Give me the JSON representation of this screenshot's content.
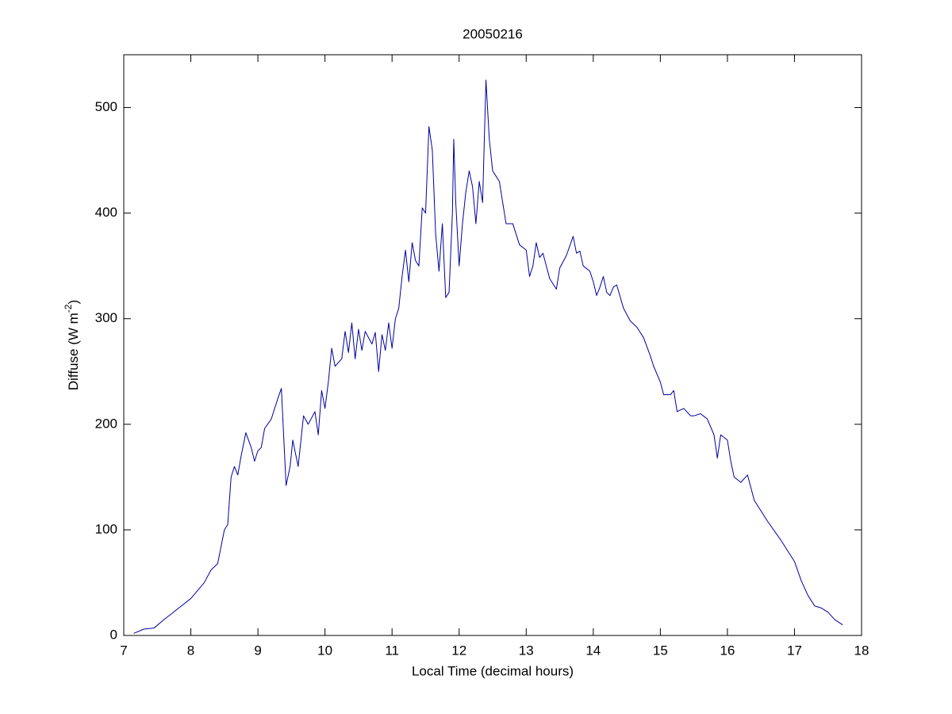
{
  "chart_data": {
    "type": "line",
    "title": "20050216",
    "xlabel": "Local Time (decimal hours)",
    "ylabel": [
      "Diffuse (W m",
      "-2",
      ")"
    ],
    "x": [
      7.15,
      7.3,
      7.45,
      7.6,
      7.8,
      8.0,
      8.2,
      8.3,
      8.4,
      8.5,
      8.55,
      8.6,
      8.65,
      8.7,
      8.75,
      8.82,
      8.9,
      8.95,
      9.0,
      9.05,
      9.1,
      9.2,
      9.3,
      9.35,
      9.42,
      9.48,
      9.52,
      9.6,
      9.68,
      9.75,
      9.85,
      9.9,
      9.95,
      10.0,
      10.05,
      10.1,
      10.15,
      10.25,
      10.3,
      10.35,
      10.4,
      10.45,
      10.5,
      10.55,
      10.6,
      10.7,
      10.75,
      10.8,
      10.85,
      10.9,
      10.95,
      11.0,
      11.05,
      11.1,
      11.15,
      11.2,
      11.25,
      11.3,
      11.35,
      11.4,
      11.45,
      11.5,
      11.55,
      11.6,
      11.65,
      11.7,
      11.75,
      11.8,
      11.85,
      11.9,
      11.92,
      11.95,
      12.0,
      12.05,
      12.1,
      12.15,
      12.2,
      12.25,
      12.3,
      12.35,
      12.4,
      12.45,
      12.5,
      12.55,
      12.6,
      12.65,
      12.7,
      12.8,
      12.9,
      13.0,
      13.05,
      13.1,
      13.15,
      13.2,
      13.25,
      13.35,
      13.45,
      13.5,
      13.6,
      13.7,
      13.75,
      13.8,
      13.85,
      13.95,
      14.0,
      14.05,
      14.1,
      14.15,
      14.2,
      14.25,
      14.3,
      14.35,
      14.45,
      14.55,
      14.65,
      14.75,
      14.85,
      14.9,
      15.0,
      15.05,
      15.15,
      15.2,
      15.25,
      15.35,
      15.45,
      15.5,
      15.6,
      15.7,
      15.8,
      15.85,
      15.9,
      16.0,
      16.05,
      16.1,
      16.2,
      16.3,
      16.4,
      16.6,
      16.8,
      17.0,
      17.1,
      17.2,
      17.3,
      17.4,
      17.5,
      17.6,
      17.72
    ],
    "series": [
      {
        "color": "#0000a0",
        "values": [
          2,
          6,
          7,
          15,
          25,
          35,
          50,
          62,
          68,
          100,
          105,
          150,
          160,
          152,
          170,
          192,
          178,
          165,
          175,
          178,
          196,
          205,
          225,
          234,
          142,
          160,
          185,
          160,
          208,
          200,
          212,
          190,
          232,
          215,
          240,
          272,
          255,
          262,
          288,
          268,
          296,
          262,
          290,
          270,
          288,
          276,
          287,
          250,
          285,
          270,
          296,
          272,
          300,
          310,
          340,
          365,
          335,
          372,
          355,
          350,
          405,
          400,
          482,
          460,
          380,
          345,
          390,
          320,
          325,
          400,
          470,
          410,
          350,
          390,
          420,
          440,
          425,
          390,
          430,
          410,
          526,
          470,
          440,
          435,
          430,
          410,
          390,
          390,
          370,
          365,
          340,
          350,
          372,
          358,
          362,
          338,
          328,
          348,
          360,
          378,
          362,
          364,
          350,
          345,
          335,
          322,
          330,
          340,
          325,
          322,
          330,
          332,
          310,
          298,
          292,
          282,
          265,
          255,
          240,
          228,
          228,
          232,
          212,
          215,
          208,
          208,
          210,
          205,
          190,
          168,
          190,
          185,
          165,
          150,
          145,
          152,
          128,
          108,
          90,
          70,
          52,
          38,
          28,
          26,
          22,
          15,
          10
        ]
      }
    ],
    "xlim": [
      7,
      18
    ],
    "ylim": [
      0,
      550
    ],
    "xticks": [
      7,
      8,
      9,
      10,
      11,
      12,
      13,
      14,
      15,
      16,
      17,
      18
    ],
    "yticks": [
      0,
      100,
      200,
      300,
      400,
      500
    ]
  }
}
